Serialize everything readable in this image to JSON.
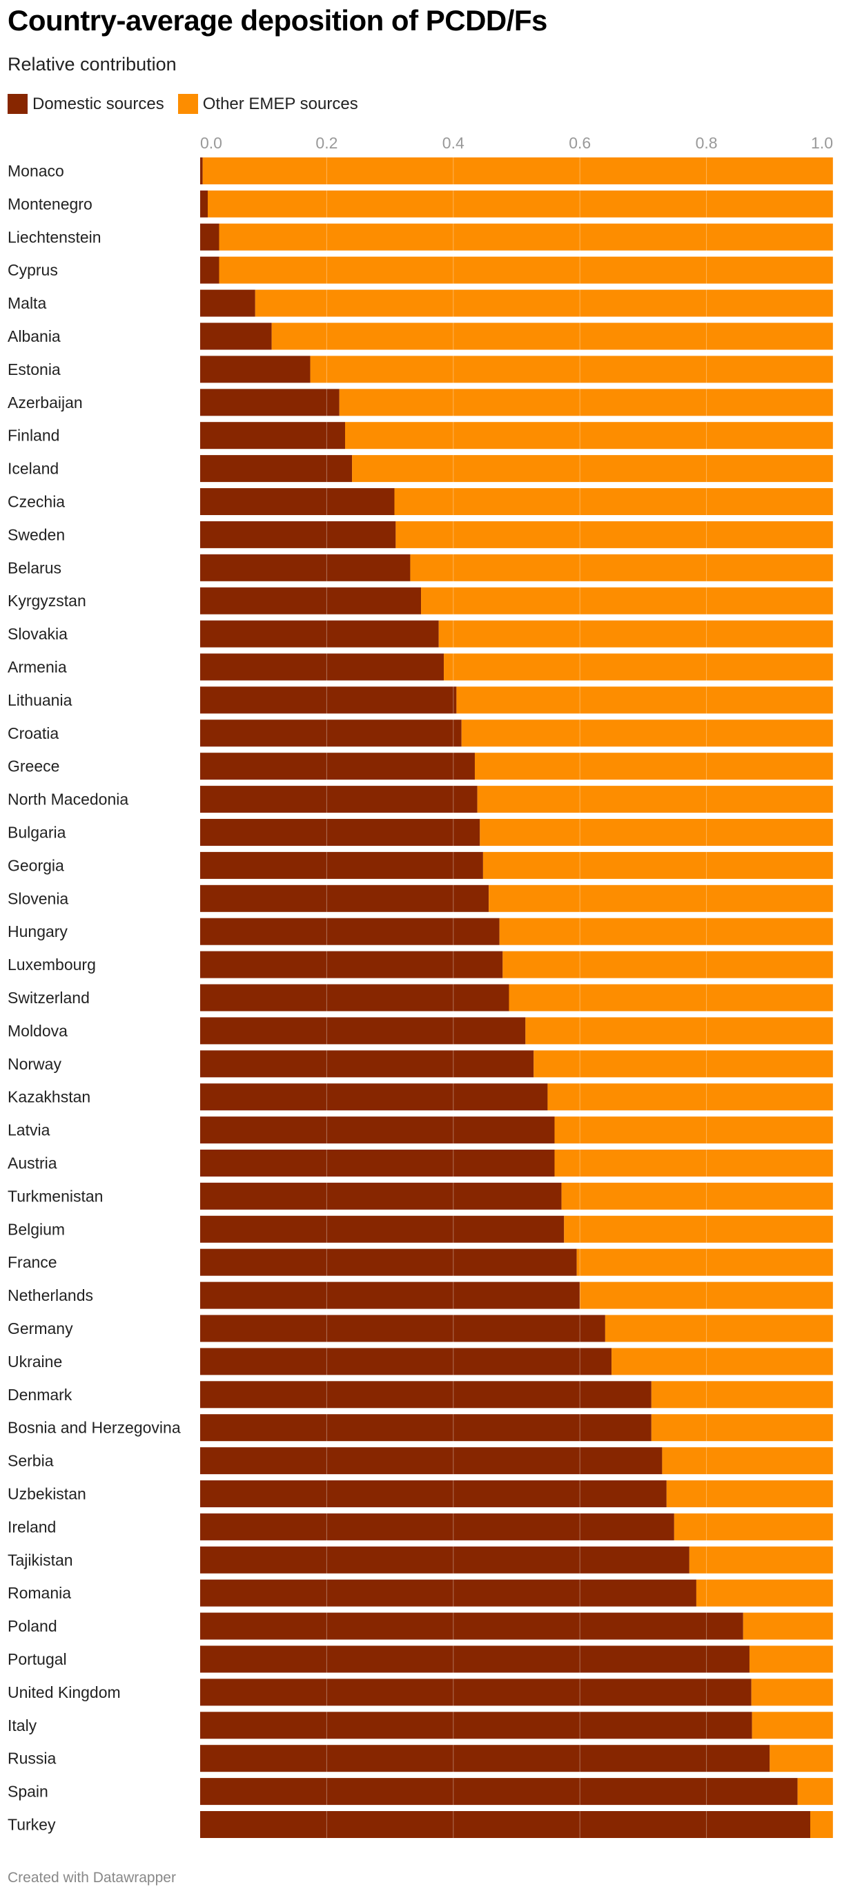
{
  "header": {
    "title": "Country-average deposition of PCDD/Fs",
    "subtitle": "Relative contribution"
  },
  "legend": {
    "items": [
      {
        "label": "Domestic sources",
        "color": "#872600"
      },
      {
        "label": "Other EMEP sources",
        "color": "#fd8d00"
      }
    ]
  },
  "footer": {
    "credit": "Created with Datawrapper"
  },
  "chart_data": {
    "type": "bar",
    "orientation": "horizontal",
    "stacked": true,
    "xlim": [
      0,
      1
    ],
    "xticks": [
      "0.0",
      "0.2",
      "0.4",
      "0.6",
      "0.8",
      "1.0"
    ],
    "grid": true,
    "categories": [
      "Monaco",
      "Montenegro",
      "Liechtenstein",
      "Cyprus",
      "Malta",
      "Albania",
      "Estonia",
      "Azerbaijan",
      "Finland",
      "Iceland",
      "Czechia",
      "Sweden",
      "Belarus",
      "Kyrgyzstan",
      "Slovakia",
      "Armenia",
      "Lithuania",
      "Croatia",
      "Greece",
      "North Macedonia",
      "Bulgaria",
      "Georgia",
      "Slovenia",
      "Hungary",
      "Luxembourg",
      "Switzerland",
      "Moldova",
      "Norway",
      "Kazakhstan",
      "Latvia",
      "Austria",
      "Turkmenistan",
      "Belgium",
      "France",
      "Netherlands",
      "Germany",
      "Ukraine",
      "Denmark",
      "Bosnia and Herzegovina",
      "Serbia",
      "Uzbekistan",
      "Ireland",
      "Tajikistan",
      "Romania",
      "Poland",
      "Portugal",
      "United Kingdom",
      "Italy",
      "Russia",
      "Spain",
      "Turkey"
    ],
    "series": [
      {
        "name": "Domestic sources",
        "color": "#872600",
        "values": [
          0.004,
          0.012,
          0.03,
          0.03,
          0.087,
          0.113,
          0.174,
          0.22,
          0.229,
          0.24,
          0.307,
          0.309,
          0.332,
          0.349,
          0.377,
          0.385,
          0.405,
          0.413,
          0.434,
          0.438,
          0.442,
          0.447,
          0.456,
          0.473,
          0.478,
          0.488,
          0.514,
          0.527,
          0.549,
          0.56,
          0.56,
          0.571,
          0.575,
          0.595,
          0.6,
          0.64,
          0.65,
          0.713,
          0.713,
          0.73,
          0.737,
          0.749,
          0.773,
          0.784,
          0.858,
          0.868,
          0.871,
          0.872,
          0.9,
          0.944,
          0.964
        ]
      },
      {
        "name": "Other EMEP sources",
        "color": "#fd8d00",
        "values": [
          0.996,
          0.988,
          0.97,
          0.97,
          0.913,
          0.887,
          0.826,
          0.78,
          0.771,
          0.76,
          0.693,
          0.691,
          0.668,
          0.651,
          0.623,
          0.615,
          0.595,
          0.587,
          0.566,
          0.562,
          0.558,
          0.553,
          0.544,
          0.527,
          0.522,
          0.512,
          0.486,
          0.473,
          0.451,
          0.44,
          0.44,
          0.429,
          0.425,
          0.405,
          0.4,
          0.36,
          0.35,
          0.287,
          0.287,
          0.27,
          0.263,
          0.251,
          0.227,
          0.216,
          0.142,
          0.132,
          0.129,
          0.128,
          0.1,
          0.056,
          0.036
        ]
      }
    ]
  }
}
